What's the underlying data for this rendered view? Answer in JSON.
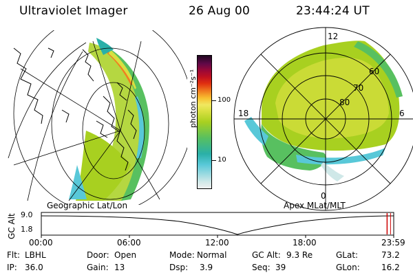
{
  "header": {
    "title": "Ultraviolet Imager",
    "date": "26 Aug 00",
    "time": "23:44:24 UT"
  },
  "left_panel": {
    "label": "Geographic Lat/Lon"
  },
  "right_panel": {
    "label": "Apex MLat/MLT",
    "mlt_labels": [
      "12",
      "18",
      "6",
      "0"
    ],
    "mlat_labels": [
      "60",
      "70",
      "80"
    ]
  },
  "colorbar": {
    "unit_label": "photon cm⁻²s⁻¹",
    "ticks": [
      "100",
      "10"
    ],
    "colors": [
      "#f0f0f0",
      "#cfe8e8",
      "#58c8d8",
      "#2ab0a8",
      "#58c060",
      "#a8d020",
      "#d8e040",
      "#f0e860",
      "#f8c030",
      "#f08020",
      "#e03010",
      "#c01020",
      "#980838",
      "#600848",
      "#200820"
    ]
  },
  "timeline": {
    "axis_label": "GC Alt",
    "y_ticks": [
      "9.0",
      "1.8"
    ],
    "time_ticks": [
      "00:00",
      "06:00",
      "12:00",
      "18:00",
      "23:59"
    ],
    "current_fraction": 0.989
  },
  "info": {
    "row1": {
      "flt_label": "Flt:",
      "flt_value": "LBHL",
      "door_label": "Door:",
      "door_value": "Open",
      "mode_label": "Mode:",
      "mode_value": "Normal",
      "gcalt_label": "GC Alt:",
      "gcalt_value": "9.3 Re",
      "glat_label": "GLat:",
      "glat_value": "73.2"
    },
    "row2": {
      "ip_label": "IP:",
      "ip_value": "36.0",
      "gain_label": "Gain:",
      "gain_value": "13",
      "dsp_label": "Dsp:",
      "dsp_value": "3.9",
      "seq_label": "Seq:",
      "seq_value": "39",
      "glon_label": "GLon:",
      "glon_value": "16.2"
    }
  }
}
